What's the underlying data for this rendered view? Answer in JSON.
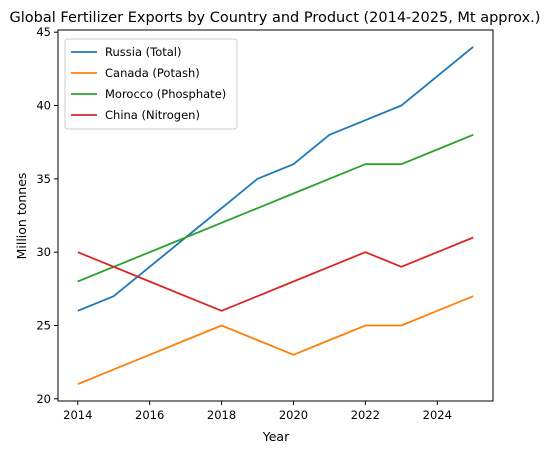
{
  "chart_data": {
    "type": "line",
    "title": "Global Fertilizer Exports by Country and Product (2014-2025, Mt approx.)",
    "xlabel": "Year",
    "ylabel": "Million tonnes",
    "xlim": [
      2013.45,
      2025.55
    ],
    "ylim": [
      19.85,
      45.15
    ],
    "xticks": [
      2014,
      2016,
      2018,
      2020,
      2022,
      2024
    ],
    "yticks": [
      20,
      25,
      30,
      35,
      40,
      45
    ],
    "grid": false,
    "legend_position": "top-left",
    "x": [
      2014,
      2015,
      2016,
      2017,
      2018,
      2019,
      2020,
      2021,
      2022,
      2023,
      2024,
      2025
    ],
    "series": [
      {
        "name": "Russia (Total)",
        "color": "#1f77b4",
        "values": [
          26,
          27,
          29,
          31,
          33,
          35,
          36,
          38,
          39,
          40,
          42,
          44
        ]
      },
      {
        "name": "Canada (Potash)",
        "color": "#ff7f0e",
        "values": [
          21,
          22,
          23,
          24,
          25,
          24,
          23,
          24,
          25,
          25,
          26,
          27
        ]
      },
      {
        "name": "Morocco (Phosphate)",
        "color": "#2ca02c",
        "values": [
          28,
          29,
          30,
          31,
          32,
          33,
          34,
          35,
          36,
          36,
          37,
          38
        ]
      },
      {
        "name": "China (Nitrogen)",
        "color": "#d62728",
        "values": [
          30,
          29,
          28,
          27,
          26,
          27,
          28,
          29,
          30,
          29,
          30,
          31
        ]
      }
    ]
  }
}
